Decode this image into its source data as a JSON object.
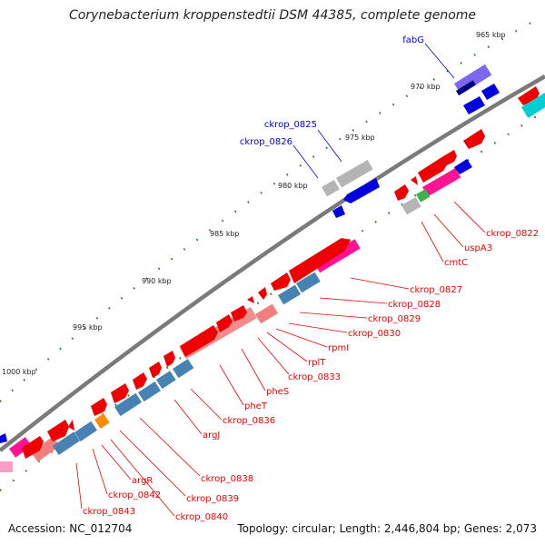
{
  "title": "Corynebacterium kroppenstedtii DSM 44385, complete genome",
  "footer": {
    "accession": "Accession: NC_012704",
    "topology": "Topology: circular; Length: 2,446,804 bp; Genes: 2,073"
  },
  "scale_labels": [
    "965 kbp",
    "970 kbp",
    "975 kbp",
    "980 kbp",
    "985 kbp",
    "990 kbp",
    "995 kbp",
    "1000 kbp"
  ],
  "blue_labels": [
    "fabG",
    "ckrop_0825",
    "ckrop_0826"
  ],
  "red_labels": [
    "ckrop_0822",
    "uspA3",
    "cmtC",
    "ckrop_0827",
    "ckrop_0828",
    "ckrop_0829",
    "ckrop_0830",
    "rpmI",
    "rplT",
    "ckrop_0833",
    "pheS",
    "pheT",
    "ckrop_0836",
    "argJ",
    "ckrop_0838",
    "ckrop_0839",
    "ckrop_0840",
    "argR",
    "ckrop_0842",
    "ckrop_0843"
  ],
  "colors": {
    "forward_cds": "#ee0000",
    "reverse_cds": "#0000dd",
    "backbone": "#808080",
    "rna_or_pseudo": "#b4b4b4",
    "pink_track": "#ff1493",
    "steelblue_track": "#4682b4",
    "salmon_track": "#f08080",
    "tick": "#1a7a1a"
  }
}
